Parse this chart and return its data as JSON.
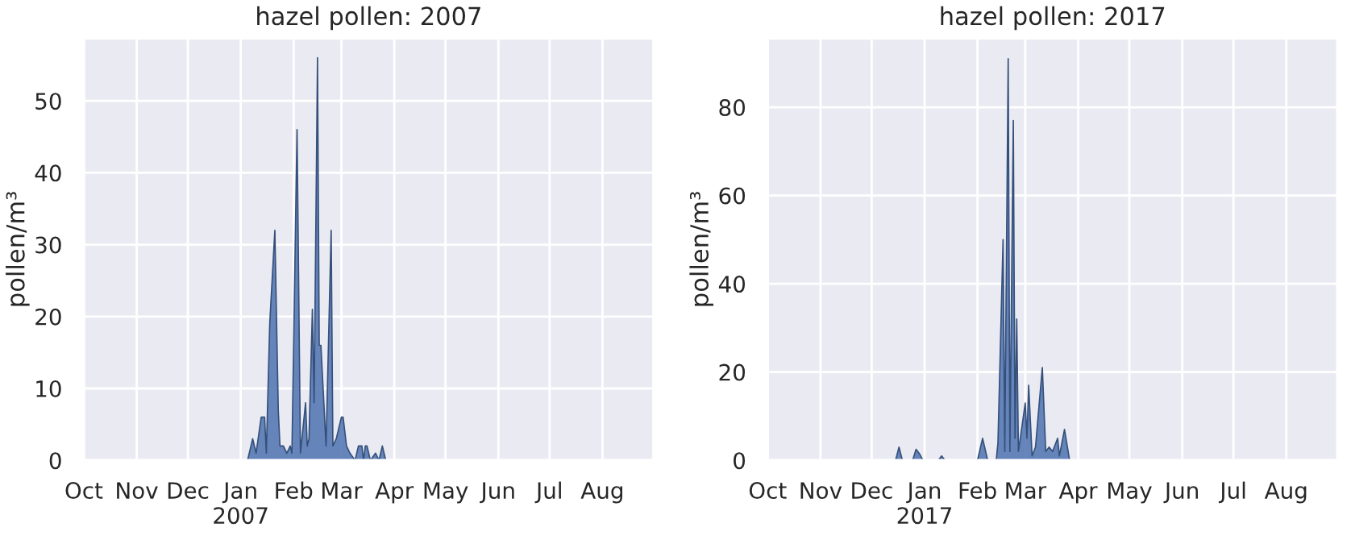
{
  "chart_data": [
    {
      "type": "area",
      "title": "hazel pollen: 2007",
      "ylabel": "pollen/m³",
      "color": "#4c72b0",
      "grid": true,
      "x": [
        "2006-10-01",
        "2007-01-05",
        "2007-01-08",
        "2007-01-10",
        "2007-01-13",
        "2007-01-15",
        "2007-01-16",
        "2007-01-18",
        "2007-01-21",
        "2007-01-23",
        "2007-01-24",
        "2007-01-26",
        "2007-01-28",
        "2007-01-30",
        "2007-01-31",
        "2007-02-03",
        "2007-02-05",
        "2007-02-08",
        "2007-02-09",
        "2007-02-10",
        "2007-02-12",
        "2007-02-13",
        "2007-02-15",
        "2007-02-16",
        "2007-02-17",
        "2007-02-20",
        "2007-02-23",
        "2007-02-24",
        "2007-02-26",
        "2007-03-01",
        "2007-03-02",
        "2007-03-04",
        "2007-03-06",
        "2007-03-09",
        "2007-03-11",
        "2007-03-13",
        "2007-03-14",
        "2007-03-15",
        "2007-03-16",
        "2007-03-18",
        "2007-03-21",
        "2007-03-23",
        "2007-03-25",
        "2007-03-27",
        "2007-08-31"
      ],
      "values": [
        0,
        0,
        3,
        1,
        6,
        6,
        1,
        19,
        32,
        7,
        2,
        2,
        1,
        2,
        1,
        46,
        1,
        8,
        2,
        3,
        21,
        8,
        56,
        16,
        16,
        2,
        32,
        2,
        3,
        6,
        6,
        2,
        1,
        0,
        2,
        2,
        0,
        2,
        2,
        0,
        1,
        0,
        2,
        0,
        0
      ],
      "xlim": [
        "2006-10-01",
        "2007-08-31"
      ],
      "xticks": [
        {
          "value": "2006-10-01",
          "label": "Oct"
        },
        {
          "value": "2006-11-01",
          "label": "Nov"
        },
        {
          "value": "2006-12-01",
          "label": "Dec"
        },
        {
          "value": "2007-01-01",
          "label": "Jan\n2007"
        },
        {
          "value": "2007-02-01",
          "label": "Feb"
        },
        {
          "value": "2007-03-01",
          "label": "Mar"
        },
        {
          "value": "2007-04-01",
          "label": "Apr"
        },
        {
          "value": "2007-05-01",
          "label": "May"
        },
        {
          "value": "2007-06-01",
          "label": "Jun"
        },
        {
          "value": "2007-07-01",
          "label": "Jul"
        },
        {
          "value": "2007-08-01",
          "label": "Aug"
        }
      ],
      "ylim": [
        0,
        58.7
      ],
      "yticks": [
        0,
        10,
        20,
        30,
        40,
        50
      ]
    },
    {
      "type": "area",
      "title": "hazel pollen: 2017",
      "ylabel": "pollen/m³",
      "color": "#4c72b0",
      "grid": true,
      "x": [
        "2016-10-01",
        "2016-12-15",
        "2016-12-17",
        "2016-12-19",
        "2016-12-25",
        "2016-12-27",
        "2016-12-29",
        "2016-12-31",
        "2017-01-09",
        "2017-01-11",
        "2017-01-13",
        "2017-02-01",
        "2017-02-04",
        "2017-02-07",
        "2017-02-12",
        "2017-02-13",
        "2017-02-16",
        "2017-02-17",
        "2017-02-19",
        "2017-02-20",
        "2017-02-22",
        "2017-02-23",
        "2017-02-24",
        "2017-02-25",
        "2017-03-01",
        "2017-03-02",
        "2017-03-03",
        "2017-03-05",
        "2017-03-07",
        "2017-03-11",
        "2017-03-13",
        "2017-03-15",
        "2017-03-17",
        "2017-03-20",
        "2017-03-21",
        "2017-03-24",
        "2017-03-27",
        "2017-08-31"
      ],
      "values": [
        0,
        0,
        3,
        0,
        0,
        2.5,
        1.5,
        0,
        0,
        1,
        0,
        0,
        5,
        0,
        0,
        4,
        50,
        2,
        91,
        2,
        77,
        5,
        32,
        2,
        13,
        5,
        17,
        1,
        3,
        21,
        2,
        3,
        2,
        5,
        1,
        7,
        0,
        0
      ],
      "xlim": [
        "2016-10-01",
        "2017-08-31"
      ],
      "xticks": [
        {
          "value": "2016-10-01",
          "label": "Oct"
        },
        {
          "value": "2016-11-01",
          "label": "Nov"
        },
        {
          "value": "2016-12-01",
          "label": "Dec"
        },
        {
          "value": "2017-01-01",
          "label": "Jan\n2017"
        },
        {
          "value": "2017-02-01",
          "label": "Feb"
        },
        {
          "value": "2017-03-01",
          "label": "Mar"
        },
        {
          "value": "2017-04-01",
          "label": "Apr"
        },
        {
          "value": "2017-05-01",
          "label": "May"
        },
        {
          "value": "2017-06-01",
          "label": "Jun"
        },
        {
          "value": "2017-07-01",
          "label": "Jul"
        },
        {
          "value": "2017-08-01",
          "label": "Aug"
        }
      ],
      "ylim": [
        0,
        95.6
      ],
      "yticks": [
        0,
        20,
        40,
        60,
        80
      ]
    }
  ]
}
